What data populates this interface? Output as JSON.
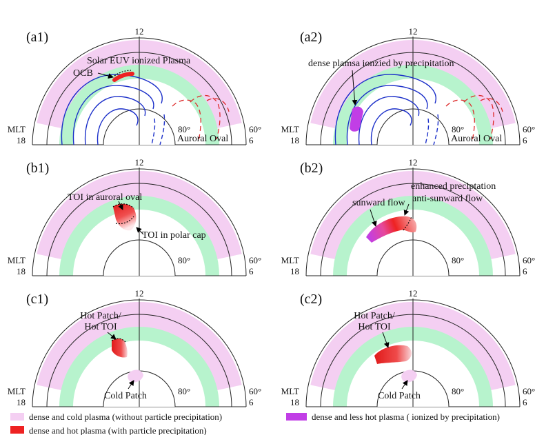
{
  "figure": {
    "legend": {
      "cold": "dense and cold plasma (without particle precipitation)",
      "hot": "dense and hot plasma   (with particle precipitation)",
      "less_hot": "dense and less hot plasma ( ionized by precipitation)"
    },
    "colors": {
      "cold_plasma": "#f4cff2",
      "auroral_oval": "#b7f3cd",
      "hot_plasma": "#ee2222",
      "less_hot_plasma": "#c13ee6",
      "convection": "#1b2fc9",
      "ocb": "#ee2222",
      "dashed_flow": "#dd2a2a"
    },
    "panels": [
      {
        "id": "a1",
        "label": "(a1)",
        "noon": "12",
        "mlt": "MLT",
        "dusk": "18",
        "dawn": "6",
        "lat_outer": "60°",
        "lat_inner": "80°",
        "annotations": [
          {
            "key": "euv",
            "text": "Solar EUV ionized Plasma"
          },
          {
            "key": "ocb",
            "text": "OCB"
          },
          {
            "key": "oval",
            "text": "Auroral Oval"
          }
        ]
      },
      {
        "id": "a2",
        "label": "(a2)",
        "noon": "12",
        "mlt": "MLT",
        "dusk": "18",
        "dawn": "6",
        "lat_outer": "60°",
        "lat_inner": "80°",
        "annotations": [
          {
            "key": "dense",
            "text": "dense plamsa ionzied by precipitation"
          },
          {
            "key": "oval",
            "text": "Auroral Oval"
          }
        ]
      },
      {
        "id": "b1",
        "label": "(b1)",
        "noon": "12",
        "mlt": "MLT",
        "dusk": "18",
        "dawn": "6",
        "lat_outer": "60°",
        "lat_inner": "80°",
        "annotations": [
          {
            "key": "toi_oval",
            "text": "TOI in auroral oval"
          },
          {
            "key": "toi_cap",
            "text": "TOI in polar cap"
          }
        ]
      },
      {
        "id": "b2",
        "label": "(b2)",
        "noon": "12",
        "mlt": "MLT",
        "dusk": "18",
        "dawn": "6",
        "lat_outer": "60°",
        "lat_inner": "80°",
        "annotations": [
          {
            "key": "enh",
            "text": "enhanced preciptation"
          },
          {
            "key": "anti",
            "text": "anti-sunward flow"
          },
          {
            "key": "sun",
            "text": "sunward flow"
          }
        ]
      },
      {
        "id": "c1",
        "label": "(c1)",
        "noon": "12",
        "mlt": "MLT",
        "dusk": "18",
        "dawn": "6",
        "lat_outer": "60°",
        "lat_inner": "80°",
        "annotations": [
          {
            "key": "hot1",
            "text": "Hot Patch/"
          },
          {
            "key": "hot2",
            "text": "Hot TOI"
          },
          {
            "key": "cold",
            "text": "Cold Patch"
          }
        ]
      },
      {
        "id": "c2",
        "label": "(c2)",
        "noon": "12",
        "mlt": "MLT",
        "dusk": "18",
        "dawn": "6",
        "lat_outer": "60°",
        "lat_inner": "80°",
        "annotations": [
          {
            "key": "hot1",
            "text": "Hot Patch/"
          },
          {
            "key": "hot2",
            "text": "Hot TOI"
          },
          {
            "key": "cold",
            "text": "Cold Patch"
          }
        ]
      }
    ]
  }
}
